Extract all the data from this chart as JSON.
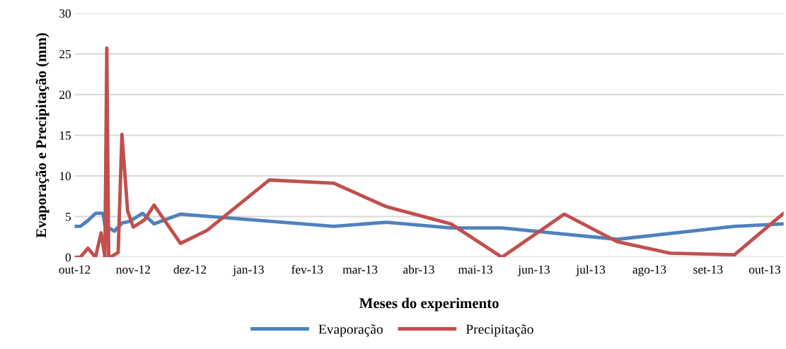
{
  "chart_data": {
    "type": "line",
    "xlabel": "Meses do experimento",
    "ylabel": "Evaporação e Precipitação (mm)",
    "xlim": [
      "2012-10-01",
      "2013-10-11"
    ],
    "xticks": [
      {
        "value": "2012-10-01",
        "label": "out-12"
      },
      {
        "value": "2012-11-01",
        "label": "nov-12"
      },
      {
        "value": "2012-12-01",
        "label": "dez-12"
      },
      {
        "value": "2013-01-01",
        "label": "jan-13"
      },
      {
        "value": "2013-02-01",
        "label": "fev-13"
      },
      {
        "value": "2013-03-01",
        "label": "mar-13"
      },
      {
        "value": "2013-04-01",
        "label": "abr-13"
      },
      {
        "value": "2013-05-01",
        "label": "mai-13"
      },
      {
        "value": "2013-06-01",
        "label": "jun-13"
      },
      {
        "value": "2013-07-01",
        "label": "jul-13"
      },
      {
        "value": "2013-08-01",
        "label": "ago-13"
      },
      {
        "value": "2013-09-01",
        "label": "set-13"
      },
      {
        "value": "2013-10-01",
        "label": "out-13"
      }
    ],
    "ylim": [
      0,
      30
    ],
    "yticks": [
      0,
      5,
      10,
      15,
      20,
      25,
      30
    ],
    "grid": "y",
    "legend": "bottom",
    "marker": "none",
    "line_style": "solid",
    "series": [
      {
        "name": "Evaporação",
        "color": "#4f81bd",
        "x": [
          "2012-10-01",
          "2012-10-04",
          "2012-10-08",
          "2012-10-12",
          "2012-10-16",
          "2012-10-17",
          "2012-10-22",
          "2012-10-26",
          "2012-10-30",
          "2012-11-06",
          "2012-11-12",
          "2012-11-26",
          "2013-02-15",
          "2013-03-15",
          "2013-04-18",
          "2013-05-15",
          "2013-07-15",
          "2013-09-15",
          "2013-10-11"
        ],
        "values": [
          3.8,
          3.8,
          4.5,
          5.4,
          5.4,
          3.9,
          3.2,
          4.2,
          4.4,
          5.4,
          4.1,
          5.3,
          3.8,
          4.3,
          3.6,
          3.6,
          2.2,
          3.8,
          4.1
        ]
      },
      {
        "name": "Precipitação",
        "color": "#c0504d",
        "x": [
          "2012-10-01",
          "2012-10-04",
          "2012-10-08",
          "2012-10-12",
          "2012-10-15",
          "2012-10-17",
          "2012-10-18",
          "2012-10-19",
          "2012-10-20",
          "2012-10-24",
          "2012-10-26",
          "2012-10-29",
          "2012-11-01",
          "2012-11-07",
          "2012-11-12",
          "2012-11-26",
          "2012-12-10",
          "2013-01-12",
          "2013-02-15",
          "2013-03-15",
          "2013-04-18",
          "2013-05-15",
          "2013-06-17",
          "2013-07-15",
          "2013-08-12",
          "2013-09-15",
          "2013-10-11"
        ],
        "values": [
          0,
          0,
          1.1,
          0,
          3.0,
          0,
          25.7,
          0,
          0,
          0.6,
          15.1,
          5.7,
          3.7,
          4.6,
          6.4,
          1.7,
          3.3,
          9.5,
          9.1,
          6.2,
          4.1,
          0,
          5.3,
          1.9,
          0.5,
          0.3,
          5.4
        ]
      }
    ]
  }
}
